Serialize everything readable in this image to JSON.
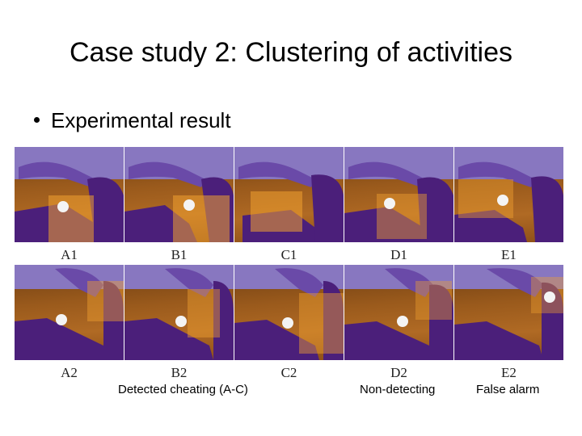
{
  "slide": {
    "title": "Case study 2: Clustering of activities",
    "bullet": "Experimental result"
  },
  "frames_row1": [
    "A1",
    "B1",
    "C1",
    "D1",
    "E1"
  ],
  "frames_row2": [
    "A2",
    "B2",
    "C2",
    "D2",
    "E2"
  ],
  "captions": {
    "detected": "Detected cheating (A-C)",
    "non_detecting": "Non-detecting",
    "false_alarm": "False alarm"
  },
  "colors": {
    "table": "#9a5a1c",
    "sleeve": "#5b2a8c",
    "highlight": "#f0a030"
  }
}
